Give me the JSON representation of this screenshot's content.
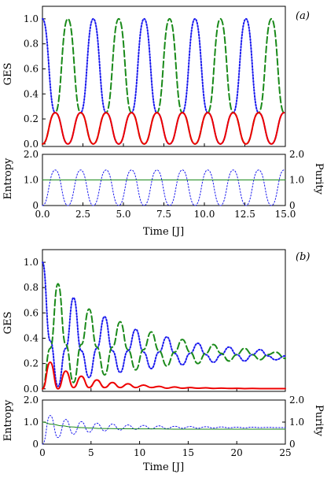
{
  "figure": {
    "panel_a_tag": "(a)",
    "panel_b_tag": "(b)",
    "ges_label": "GES",
    "entropy_label": "Entropy",
    "purity_label": "Purity",
    "time_label": "Time [J]"
  },
  "colors": {
    "red": "#ee0000",
    "green": "#1a8a1a",
    "blue": "#1a1aee",
    "axis": "#000000"
  },
  "chart_data": [
    {
      "panel": "(a)",
      "type": "line",
      "ylabel": "GES",
      "xlim": [
        0,
        15
      ],
      "ylim": [
        -0.02,
        1.1
      ],
      "yticks": [
        "0.0",
        "0.2",
        "0.4",
        "0.6",
        "0.8",
        "1.0"
      ],
      "series": [
        {
          "style": "dotted",
          "color": "blue",
          "x": [
            0,
            0.79,
            1.57,
            2.36,
            3.14,
            3.93,
            4.71,
            5.5,
            6.28,
            7.07,
            7.85,
            8.64,
            9.42,
            10.21,
            10.99,
            11.78,
            12.57,
            13.35,
            14.14,
            14.92
          ],
          "y": [
            1.0,
            0.25,
            0.0,
            0.25,
            1.0,
            0.25,
            0.0,
            0.25,
            1.0,
            0.25,
            0.0,
            0.25,
            1.0,
            0.25,
            0.0,
            0.25,
            1.0,
            0.25,
            0.0,
            0.25
          ]
        },
        {
          "style": "dashed",
          "color": "green",
          "x": [
            0,
            0.79,
            1.57,
            2.36,
            3.14,
            3.93,
            4.71,
            5.5,
            6.28,
            7.07,
            7.85,
            8.64,
            9.42,
            10.21,
            10.99,
            11.78,
            12.57,
            13.35,
            14.14,
            14.92
          ],
          "y": [
            0.0,
            0.25,
            1.0,
            0.25,
            0.0,
            0.25,
            1.0,
            0.25,
            0.0,
            0.25,
            1.0,
            0.25,
            0.0,
            0.25,
            1.0,
            0.25,
            0.0,
            0.25,
            1.0,
            0.25
          ]
        },
        {
          "style": "solid",
          "color": "red",
          "x": [
            0,
            0.79,
            1.57,
            2.36,
            3.14,
            3.93,
            4.71,
            5.5,
            6.28,
            7.07,
            7.85,
            8.64,
            9.42,
            10.21,
            10.99,
            11.78,
            12.57,
            13.35,
            14.14,
            14.92
          ],
          "y": [
            0.0,
            0.25,
            0.0,
            0.25,
            0.0,
            0.25,
            0.0,
            0.25,
            0.0,
            0.25,
            0.0,
            0.25,
            0.0,
            0.25,
            0.0,
            0.25,
            0.0,
            0.25,
            0.0,
            0.25
          ]
        }
      ]
    },
    {
      "panel": "(a) lower",
      "type": "line",
      "xlabel": "Time [J]",
      "ylabel": "Entropy",
      "ylabel_right": "Purity",
      "xlim": [
        0,
        15
      ],
      "ylim": [
        0,
        2.0
      ],
      "xticks": [
        "0.0",
        "2.5",
        "5.0",
        "7.5",
        "10.0",
        "12.5",
        "15.0"
      ],
      "yticks": [
        "0",
        "1.0",
        "2.0"
      ],
      "yticks_right": [
        "0",
        "1.0",
        "2.0"
      ],
      "series": [
        {
          "style": "dotted",
          "color": "blue",
          "axis": "left",
          "x": [
            0,
            0.79,
            1.57,
            2.36,
            3.14,
            3.93,
            4.71,
            5.5,
            6.28,
            7.07,
            7.85,
            8.64,
            9.42,
            10.21,
            10.99,
            11.78,
            12.57,
            13.35,
            14.14,
            14.92
          ],
          "y": [
            0.0,
            1.39,
            0.0,
            1.39,
            0.0,
            1.39,
            0.0,
            1.39,
            0.0,
            1.39,
            0.0,
            1.39,
            0.0,
            1.39,
            0.0,
            1.39,
            0.0,
            1.39,
            0.0,
            1.39
          ]
        },
        {
          "style": "solid",
          "color": "green",
          "axis": "right",
          "x": [
            0,
            15
          ],
          "y": [
            1.0,
            1.0
          ]
        }
      ]
    },
    {
      "panel": "(b)",
      "type": "line",
      "ylabel": "GES",
      "xlim": [
        0,
        25
      ],
      "ylim": [
        -0.02,
        1.1
      ],
      "yticks": [
        "0.0",
        "0.2",
        "0.4",
        "0.6",
        "0.8",
        "1.0"
      ],
      "series": [
        {
          "style": "dotted",
          "color": "blue",
          "x": [
            0,
            0.8,
            1.6,
            2.4,
            3.2,
            4.0,
            4.8,
            5.6,
            6.4,
            7.2,
            8.0,
            8.8,
            9.6,
            10.4,
            11.2,
            12.0,
            12.8,
            13.6,
            14.4,
            15.2,
            16.0,
            16.8,
            17.6,
            18.4,
            19.2,
            20.0,
            20.8,
            21.6,
            22.4,
            23.2,
            24.0,
            25.0
          ],
          "y": [
            1.0,
            0.38,
            0.02,
            0.32,
            0.72,
            0.3,
            0.09,
            0.32,
            0.57,
            0.3,
            0.13,
            0.3,
            0.47,
            0.29,
            0.16,
            0.29,
            0.41,
            0.28,
            0.19,
            0.28,
            0.36,
            0.27,
            0.21,
            0.27,
            0.33,
            0.27,
            0.22,
            0.27,
            0.31,
            0.26,
            0.23,
            0.26
          ]
        },
        {
          "style": "dashed",
          "color": "green",
          "x": [
            0,
            0.8,
            1.6,
            2.4,
            3.2,
            4.0,
            4.8,
            5.6,
            6.4,
            7.2,
            8.0,
            8.8,
            9.6,
            10.4,
            11.2,
            12.0,
            12.8,
            13.6,
            14.4,
            15.2,
            16.0,
            16.8,
            17.6,
            18.4,
            19.2,
            20.0,
            20.8,
            21.6,
            22.4,
            23.2,
            24.0,
            25.0
          ],
          "y": [
            0.0,
            0.32,
            0.83,
            0.35,
            0.05,
            0.35,
            0.63,
            0.33,
            0.11,
            0.33,
            0.53,
            0.31,
            0.15,
            0.31,
            0.45,
            0.3,
            0.18,
            0.29,
            0.39,
            0.29,
            0.2,
            0.28,
            0.35,
            0.28,
            0.22,
            0.27,
            0.32,
            0.27,
            0.23,
            0.27,
            0.29,
            0.24
          ]
        },
        {
          "style": "solid",
          "color": "red",
          "x": [
            0,
            0.8,
            1.6,
            2.4,
            3.2,
            4.0,
            4.8,
            5.6,
            6.4,
            7.2,
            8.0,
            8.8,
            9.6,
            10.4,
            11.2,
            12.0,
            12.8,
            13.6,
            14.4,
            15.2,
            16.0,
            16.8,
            17.6,
            18.4,
            19.2,
            20.0,
            20.8,
            21.6,
            22.4,
            23.2,
            24.0,
            25.0
          ],
          "y": [
            0.0,
            0.21,
            0.0,
            0.14,
            0.01,
            0.1,
            0.01,
            0.07,
            0.01,
            0.05,
            0.01,
            0.04,
            0.01,
            0.03,
            0.01,
            0.02,
            0.005,
            0.015,
            0.005,
            0.01,
            0.005,
            0.008,
            0.003,
            0.006,
            0.003,
            0.004,
            0.002,
            0.003,
            0.002,
            0.002,
            0.002,
            0.002
          ]
        }
      ]
    },
    {
      "panel": "(b) lower",
      "type": "line",
      "xlabel": "Time [J]",
      "ylabel": "Entropy",
      "ylabel_right": "Purity",
      "xlim": [
        0,
        25
      ],
      "ylim": [
        0,
        2.0
      ],
      "xticks": [
        "0",
        "5",
        "10",
        "15",
        "20",
        "25"
      ],
      "yticks": [
        "0",
        "1.0",
        "2.0"
      ],
      "yticks_right": [
        "0",
        "1.0",
        "2.0"
      ],
      "series": [
        {
          "style": "dotted",
          "color": "blue",
          "axis": "left",
          "x": [
            0,
            0.8,
            1.6,
            2.4,
            3.2,
            4.0,
            4.8,
            5.6,
            6.4,
            7.2,
            8.0,
            8.8,
            9.6,
            10.4,
            11.2,
            12.0,
            12.8,
            13.6,
            14.4,
            15.2,
            16.0,
            16.8,
            17.6,
            18.4,
            19.2,
            20.0,
            20.8,
            21.6,
            22.4,
            23.2,
            24.0,
            25.0
          ],
          "y": [
            0.0,
            1.3,
            0.3,
            1.12,
            0.45,
            1.02,
            0.54,
            0.95,
            0.6,
            0.91,
            0.64,
            0.87,
            0.67,
            0.85,
            0.69,
            0.83,
            0.7,
            0.81,
            0.72,
            0.8,
            0.72,
            0.79,
            0.73,
            0.78,
            0.74,
            0.77,
            0.74,
            0.77,
            0.75,
            0.76,
            0.75,
            0.75
          ]
        },
        {
          "style": "solid",
          "color": "green",
          "axis": "right",
          "x": [
            0,
            1,
            2,
            3,
            4,
            5,
            6,
            8,
            10,
            12,
            14,
            16,
            18,
            20,
            22,
            25
          ],
          "y": [
            1.0,
            0.9,
            0.83,
            0.78,
            0.75,
            0.73,
            0.71,
            0.7,
            0.69,
            0.69,
            0.68,
            0.68,
            0.68,
            0.68,
            0.68,
            0.68
          ]
        }
      ]
    }
  ]
}
